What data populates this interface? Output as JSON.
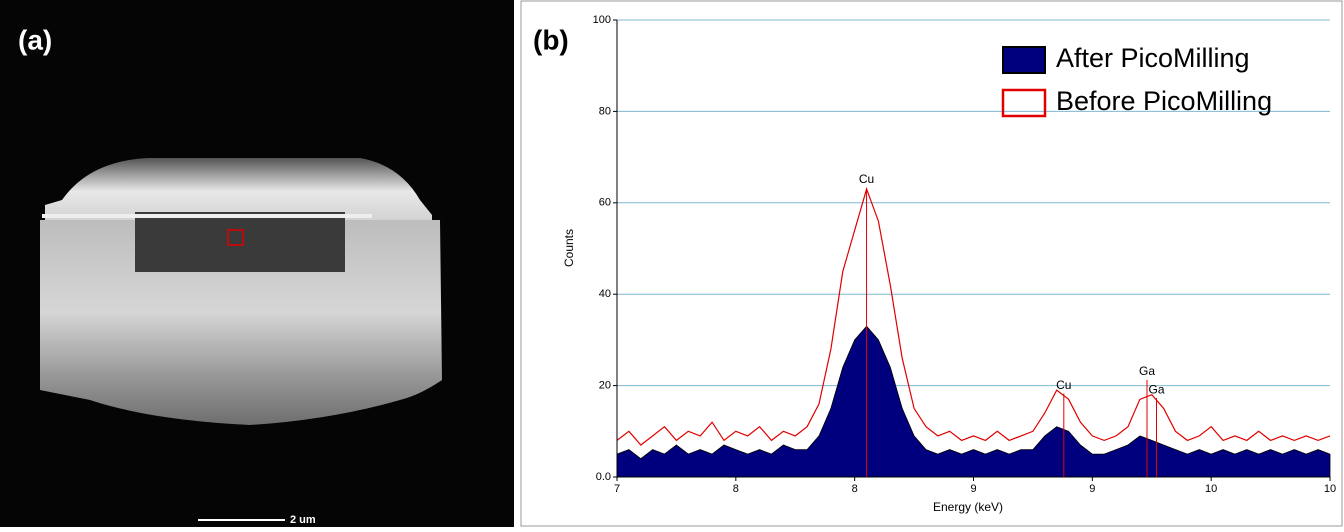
{
  "panel_a": {
    "label": "(a)",
    "scale_bar": "2 um"
  },
  "chart_data": {
    "type": "line",
    "panel_label": "(b)",
    "x_label": "Energy (keV)",
    "y_label": "Counts",
    "xlim": [
      7,
      10
    ],
    "ylim": [
      0,
      100
    ],
    "xticks": [
      7,
      {
        "value": 7.5,
        "label": "8"
      },
      8,
      {
        "value": 8.5,
        "label": "9"
      },
      9,
      {
        "value": 9.5,
        "label": "10"
      },
      10
    ],
    "yticks": [
      {
        "value": 0,
        "label": "0.0"
      },
      20,
      40,
      60,
      80,
      100
    ],
    "grid": true,
    "legend": "upper right",
    "x": [
      7.0,
      7.05,
      7.1,
      7.15,
      7.2,
      7.25,
      7.3,
      7.35,
      7.4,
      7.45,
      7.5,
      7.55,
      7.6,
      7.65,
      7.7,
      7.75,
      7.8,
      7.85,
      7.9,
      7.95,
      8.0,
      8.05,
      8.1,
      8.15,
      8.2,
      8.25,
      8.3,
      8.35,
      8.4,
      8.45,
      8.5,
      8.55,
      8.6,
      8.65,
      8.7,
      8.75,
      8.8,
      8.85,
      8.9,
      8.95,
      9.0,
      9.05,
      9.1,
      9.15,
      9.2,
      9.25,
      9.3,
      9.35,
      9.4,
      9.45,
      9.5,
      9.55,
      9.6,
      9.65,
      9.7,
      9.75,
      9.8,
      9.85,
      9.9,
      9.95,
      10.0
    ],
    "series": [
      {
        "name": "After PicoMilling",
        "color": "#00007f",
        "style": "area",
        "values": [
          5,
          6,
          4,
          6,
          5,
          7,
          5,
          6,
          5,
          7,
          6,
          5,
          6,
          5,
          7,
          6,
          6,
          9,
          15,
          24,
          30,
          33,
          30,
          24,
          15,
          9,
          6,
          5,
          6,
          5,
          6,
          5,
          6,
          5,
          6,
          6,
          9,
          11,
          10,
          7,
          5,
          5,
          6,
          7,
          9,
          8,
          7,
          6,
          5,
          6,
          5,
          6,
          5,
          6,
          5,
          6,
          5,
          6,
          5,
          6,
          5
        ]
      },
      {
        "name": "Before PicoMilling",
        "color": "#e00000",
        "style": "outline",
        "values": [
          8,
          10,
          7,
          9,
          11,
          8,
          10,
          9,
          12,
          8,
          10,
          9,
          11,
          8,
          10,
          9,
          11,
          16,
          28,
          45,
          54,
          63,
          56,
          42,
          26,
          15,
          11,
          9,
          10,
          8,
          9,
          8,
          10,
          8,
          9,
          10,
          14,
          19,
          17,
          12,
          9,
          8,
          9,
          11,
          17,
          18,
          15,
          10,
          8,
          9,
          11,
          8,
          9,
          8,
          10,
          8,
          9,
          8,
          9,
          8,
          9
        ]
      }
    ],
    "annotations": [
      {
        "text": "Cu",
        "x": 8.05,
        "y": 65
      },
      {
        "text": "Cu",
        "x": 8.88,
        "y": 20
      },
      {
        "text": "Ga",
        "x": 9.23,
        "y": 23
      },
      {
        "text": "Ga",
        "x": 9.27,
        "y": 19
      }
    ]
  }
}
